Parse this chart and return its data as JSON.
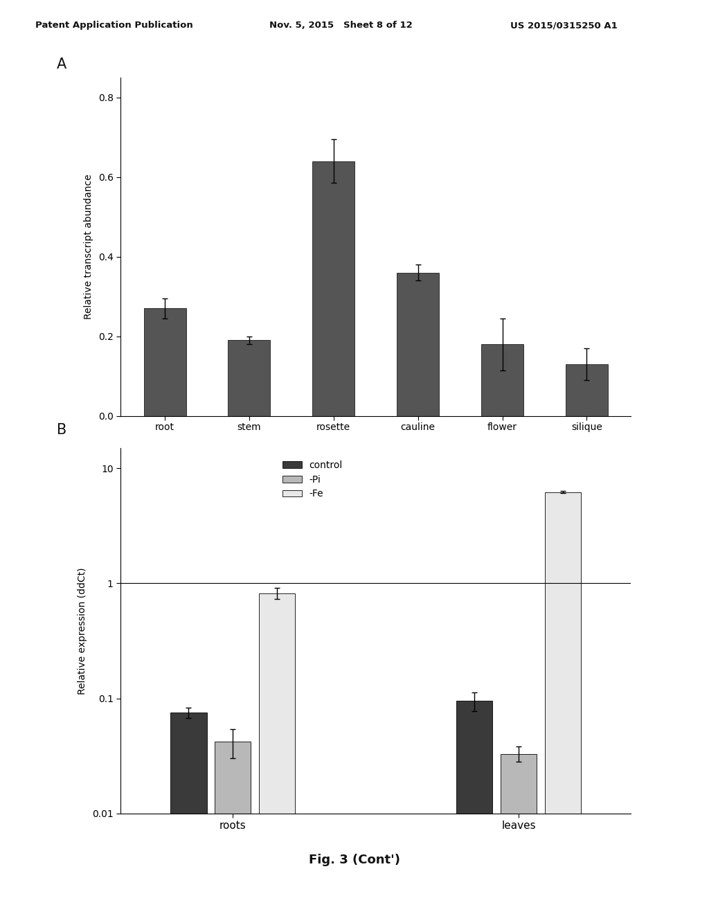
{
  "panel_A": {
    "categories": [
      "root",
      "stem",
      "rosette",
      "cauline",
      "flower",
      "silique"
    ],
    "values": [
      0.27,
      0.19,
      0.64,
      0.36,
      0.18,
      0.13
    ],
    "errors": [
      0.025,
      0.01,
      0.055,
      0.02,
      0.065,
      0.04
    ],
    "bar_color": "#555555",
    "ylabel": "Relative transcript abundance",
    "ylim": [
      0.0,
      0.85
    ],
    "yticks": [
      0.0,
      0.2,
      0.4,
      0.6,
      0.8
    ]
  },
  "panel_B": {
    "groups": [
      "roots",
      "leaves"
    ],
    "series": [
      "control",
      "-Pi",
      "-Fe"
    ],
    "values": {
      "roots": [
        0.075,
        0.042,
        0.82
      ],
      "leaves": [
        0.095,
        0.033,
        6.2
      ]
    },
    "errors": {
      "roots": [
        0.008,
        0.012,
        0.09
      ],
      "leaves": [
        0.018,
        0.005,
        0.15
      ]
    },
    "colors": [
      "#3a3a3a",
      "#b8b8b8",
      "#e8e8e8"
    ],
    "edge_colors": [
      "#000000",
      "#000000",
      "#000000"
    ],
    "ylabel": "Relative expression (ddCt)",
    "ylim_log": [
      0.01,
      15
    ],
    "yticks_log": [
      0.01,
      0.1,
      1,
      10
    ],
    "ytick_labels": [
      "0.01",
      "0.1",
      "1",
      "10"
    ],
    "hline_y": 1.0,
    "legend_labels": [
      "control",
      "-Pi",
      "-Fe"
    ]
  },
  "header_left": "Patent Application Publication",
  "header_mid": "Nov. 5, 2015   Sheet 8 of 12",
  "header_right": "US 2015/0315250 A1",
  "figure_caption": "Fig. 3 (Cont')",
  "label_A": "A",
  "label_B": "B",
  "bg_color": "#ffffff",
  "text_color": "#111111"
}
